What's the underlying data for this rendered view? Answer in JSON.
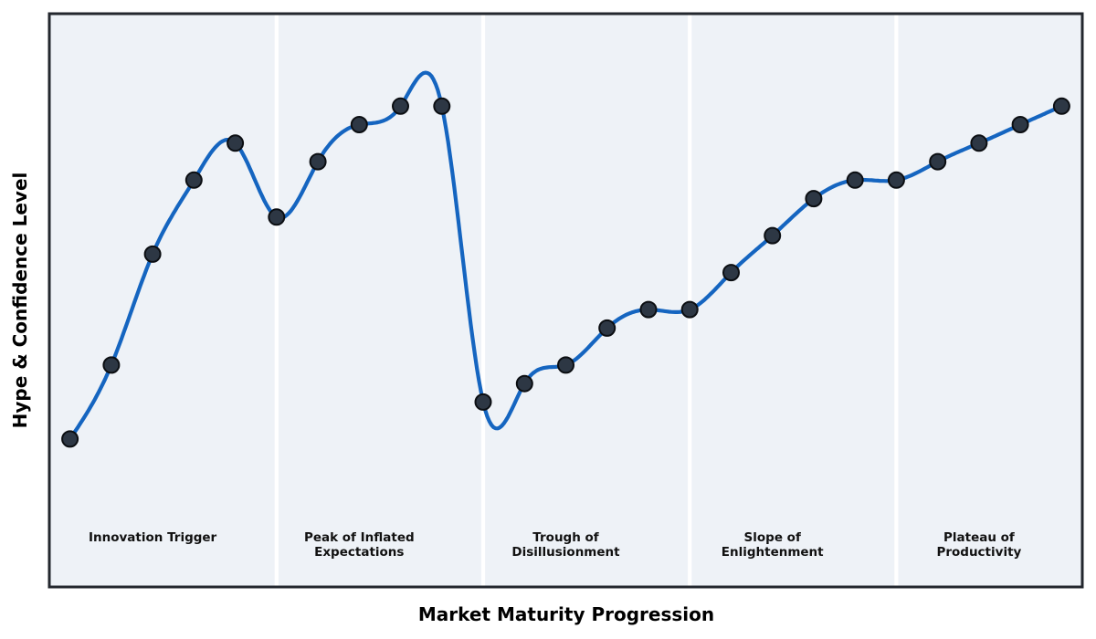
{
  "chart_data": {
    "type": "line",
    "title": "",
    "xlabel": "Market Maturity Progression",
    "ylabel": "Hype & Confidence Level",
    "interpolation": "cubic-spline",
    "marker": "circle",
    "grid": false,
    "legend": null,
    "x": [
      0,
      1,
      2,
      3,
      4,
      5,
      6,
      7,
      8,
      9,
      10,
      11,
      12,
      13,
      14,
      15,
      16,
      17,
      18,
      19,
      20,
      21,
      22,
      23,
      24
    ],
    "values": [
      5,
      25,
      55,
      75,
      85,
      65,
      80,
      90,
      95,
      95,
      15,
      20,
      25,
      35,
      40,
      40,
      50,
      60,
      70,
      75,
      75,
      80,
      85,
      90,
      95
    ],
    "xlim": [
      -0.5,
      24.5
    ],
    "ylim": [
      -35,
      120
    ],
    "band_boundaries_x": [
      5,
      10,
      15,
      20
    ],
    "phases": [
      {
        "label": "Innovation Trigger",
        "label_x": 2
      },
      {
        "label": "Peak of Inflated\nExpectations",
        "label_x": 7
      },
      {
        "label": "Trough of\nDisillusionment",
        "label_x": 12
      },
      {
        "label": "Slope of\nEnlightenment",
        "label_x": 17
      },
      {
        "label": "Plateau of\nProductivity",
        "label_x": 22
      }
    ],
    "colors": {
      "line": "#1565c0",
      "marker_fill": "#2d3744",
      "marker_edge": "#0b0e12",
      "band": "#eef2f7",
      "separator": "#ffffff",
      "border": "#23272e",
      "label_text": "#111111"
    }
  }
}
